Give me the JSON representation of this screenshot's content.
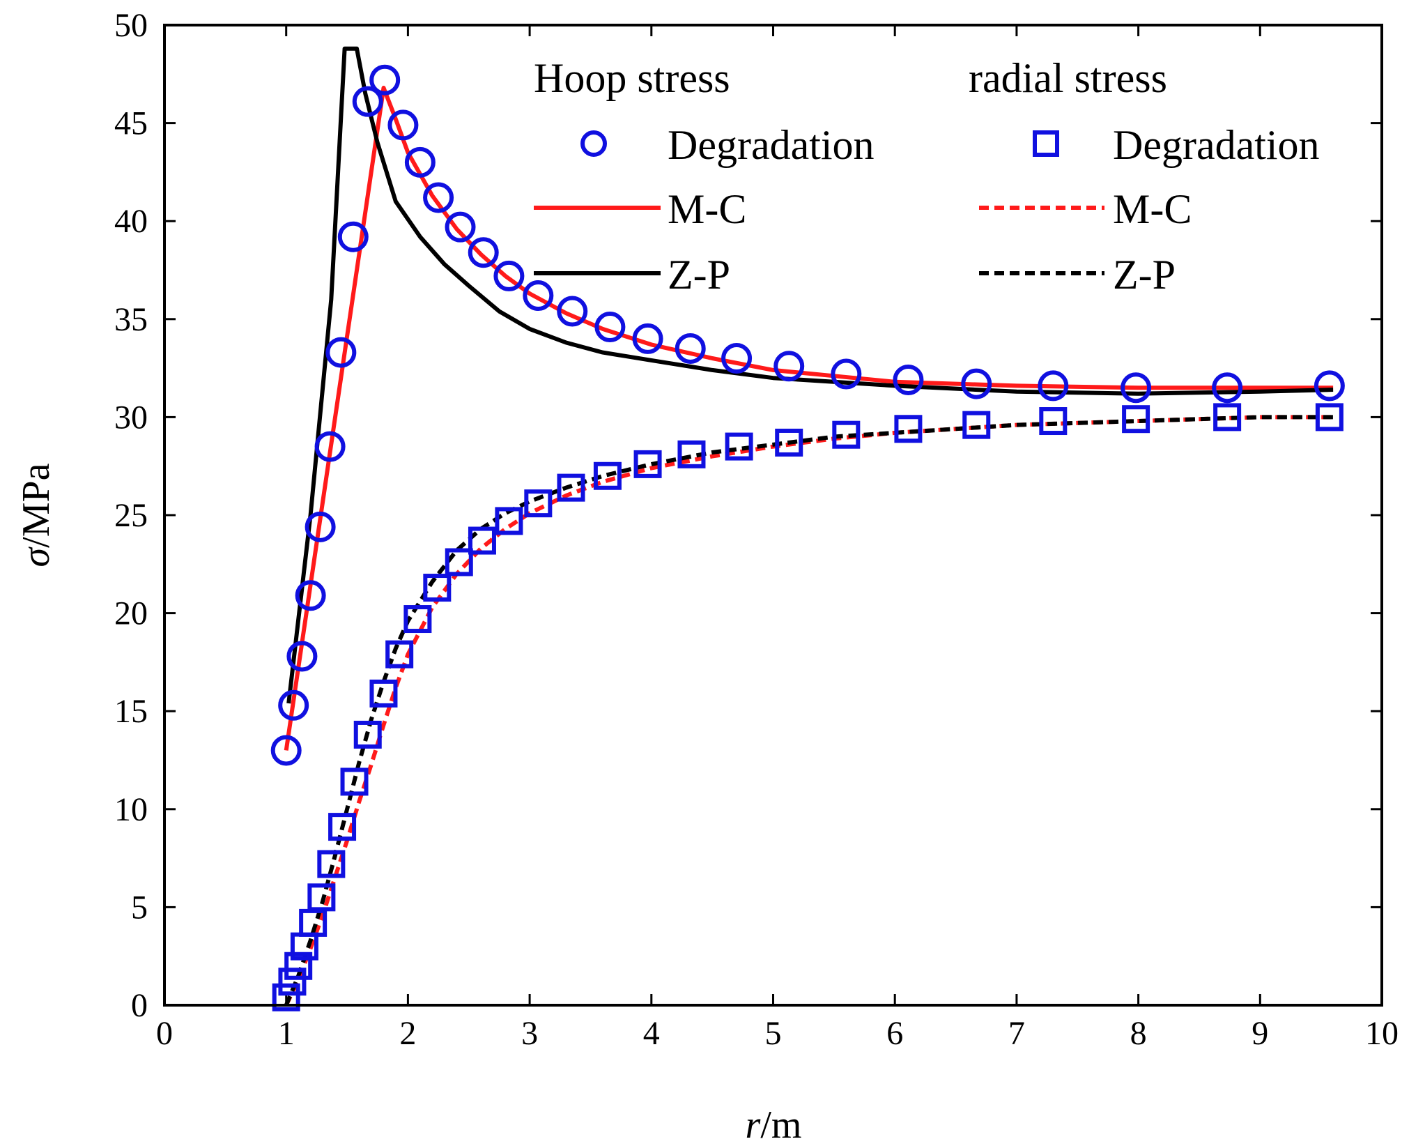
{
  "chart_data": {
    "type": "line",
    "xlabel_var": "r",
    "xlabel_unit": "/m",
    "ylabel_var": "σ",
    "ylabel_unit": "/MPa",
    "xlim": [
      0,
      10
    ],
    "ylim": [
      0,
      50
    ],
    "xticks": [
      "0",
      "1",
      "2",
      "3",
      "4",
      "5",
      "6",
      "7",
      "8",
      "9",
      "10"
    ],
    "yticks": [
      "0",
      "5",
      "10",
      "15",
      "20",
      "25",
      "30",
      "35",
      "40",
      "45",
      "50"
    ],
    "legend": {
      "position": "top-right",
      "hoop_header": "Hoop stress",
      "radial_header": "radial stress",
      "entries": [
        {
          "label": "Degradation",
          "column": "hoop",
          "marker": "circle",
          "color": "#1010e0"
        },
        {
          "label": "M-C",
          "column": "hoop",
          "line": "solid",
          "color": "#ff1a1a"
        },
        {
          "label": "Z-P",
          "column": "hoop",
          "line": "solid",
          "color": "#000000"
        },
        {
          "label": "Degradation",
          "column": "radial",
          "marker": "square",
          "color": "#1010e0"
        },
        {
          "label": "M-C",
          "column": "radial",
          "line": "dashed",
          "color": "#ff1a1a"
        },
        {
          "label": "Z-P",
          "column": "radial",
          "line": "dashed",
          "color": "#000000"
        }
      ]
    },
    "series": [
      {
        "name": "Hoop stress Degradation",
        "kind": "marker",
        "marker": "circle",
        "color": "#1010e0",
        "x": [
          1.0,
          1.06,
          1.13,
          1.2,
          1.28,
          1.36,
          1.45,
          1.55,
          1.67,
          1.81,
          1.96,
          2.1,
          2.25,
          2.43,
          2.62,
          2.83,
          3.07,
          3.35,
          3.66,
          3.97,
          4.32,
          4.7,
          5.13,
          5.6,
          6.11,
          6.67,
          7.3,
          7.98,
          8.73,
          9.57
        ],
        "y": [
          13.0,
          15.3,
          17.8,
          20.9,
          24.4,
          28.5,
          33.3,
          39.2,
          46.1,
          47.2,
          44.9,
          43.0,
          41.2,
          39.7,
          38.4,
          37.2,
          36.2,
          35.4,
          34.6,
          34.0,
          33.5,
          33.0,
          32.6,
          32.2,
          31.9,
          31.7,
          31.6,
          31.5,
          31.5,
          31.6
        ]
      },
      {
        "name": "Hoop stress M-C",
        "kind": "line",
        "dash": false,
        "color": "#ff1a1a",
        "x": [
          1.0,
          1.8,
          1.9,
          2.0,
          2.2,
          2.4,
          2.6,
          2.8,
          3.0,
          3.3,
          3.6,
          4.0,
          4.5,
          5.0,
          5.5,
          6.0,
          7.0,
          8.0,
          9.0,
          9.6
        ],
        "y": [
          13.0,
          46.8,
          45.2,
          43.5,
          41.3,
          39.6,
          38.3,
          37.2,
          36.3,
          35.3,
          34.5,
          33.7,
          33.0,
          32.4,
          32.1,
          31.8,
          31.6,
          31.5,
          31.5,
          31.5
        ]
      },
      {
        "name": "Hoop stress Z-P",
        "kind": "line",
        "dash": false,
        "color": "#000000",
        "x": [
          1.02,
          1.2,
          1.37,
          1.48,
          1.58,
          1.65,
          1.75,
          1.9,
          2.1,
          2.3,
          2.5,
          2.75,
          3.0,
          3.3,
          3.6,
          4.0,
          4.5,
          5.0,
          5.5,
          6.0,
          7.0,
          8.0,
          9.0,
          9.6
        ],
        "y": [
          15.4,
          25.0,
          36.0,
          48.8,
          48.8,
          46.5,
          44.0,
          41.0,
          39.2,
          37.8,
          36.7,
          35.4,
          34.5,
          33.8,
          33.3,
          32.9,
          32.4,
          32.0,
          31.8,
          31.6,
          31.3,
          31.2,
          31.3,
          31.4
        ]
      },
      {
        "name": "radial stress Degradation",
        "kind": "marker",
        "marker": "square",
        "color": "#1010e0",
        "x": [
          1.0,
          1.05,
          1.1,
          1.15,
          1.22,
          1.29,
          1.37,
          1.46,
          1.56,
          1.67,
          1.8,
          1.93,
          2.08,
          2.24,
          2.42,
          2.61,
          2.83,
          3.07,
          3.34,
          3.64,
          3.97,
          4.33,
          4.72,
          5.13,
          5.6,
          6.11,
          6.67,
          7.3,
          7.98,
          8.73,
          9.57
        ],
        "y": [
          0.4,
          1.2,
          2.0,
          3.0,
          4.2,
          5.5,
          7.2,
          9.1,
          11.4,
          13.8,
          15.9,
          17.9,
          19.7,
          21.3,
          22.6,
          23.7,
          24.7,
          25.6,
          26.4,
          27.0,
          27.6,
          28.1,
          28.5,
          28.7,
          29.1,
          29.4,
          29.6,
          29.8,
          29.9,
          30.0,
          30.0
        ]
      },
      {
        "name": "radial stress M-C",
        "kind": "line",
        "dash": true,
        "color": "#ff1a1a",
        "x": [
          1.0,
          1.1,
          1.2,
          1.3,
          1.4,
          1.5,
          1.6,
          1.7,
          1.8,
          1.9,
          2.0,
          2.2,
          2.4,
          2.6,
          2.8,
          3.0,
          3.3,
          3.6,
          4.0,
          4.5,
          5.0,
          5.5,
          6.0,
          7.0,
          8.0,
          9.0,
          9.6
        ],
        "y": [
          0.0,
          1.3,
          2.9,
          4.6,
          6.5,
          8.4,
          10.4,
          12.3,
          14.3,
          16.2,
          17.9,
          20.3,
          22.0,
          23.3,
          24.3,
          25.1,
          26.0,
          26.7,
          27.4,
          28.0,
          28.5,
          28.9,
          29.2,
          29.6,
          29.8,
          30.0,
          30.0
        ]
      },
      {
        "name": "radial stress Z-P",
        "kind": "line",
        "dash": true,
        "color": "#000000",
        "x": [
          1.0,
          1.1,
          1.2,
          1.3,
          1.4,
          1.5,
          1.6,
          1.7,
          1.8,
          1.9,
          2.0,
          2.2,
          2.4,
          2.6,
          2.8,
          3.0,
          3.3,
          3.6,
          4.0,
          4.5,
          5.0,
          5.5,
          6.0,
          7.0,
          8.0,
          9.0,
          9.6
        ],
        "y": [
          0.0,
          1.5,
          3.3,
          5.3,
          7.6,
          10.0,
          12.4,
          14.6,
          16.5,
          18.2,
          19.6,
          21.6,
          23.2,
          24.3,
          25.1,
          25.7,
          26.4,
          27.0,
          27.6,
          28.2,
          28.6,
          29.0,
          29.2,
          29.6,
          29.8,
          30.0,
          30.0
        ]
      }
    ]
  }
}
